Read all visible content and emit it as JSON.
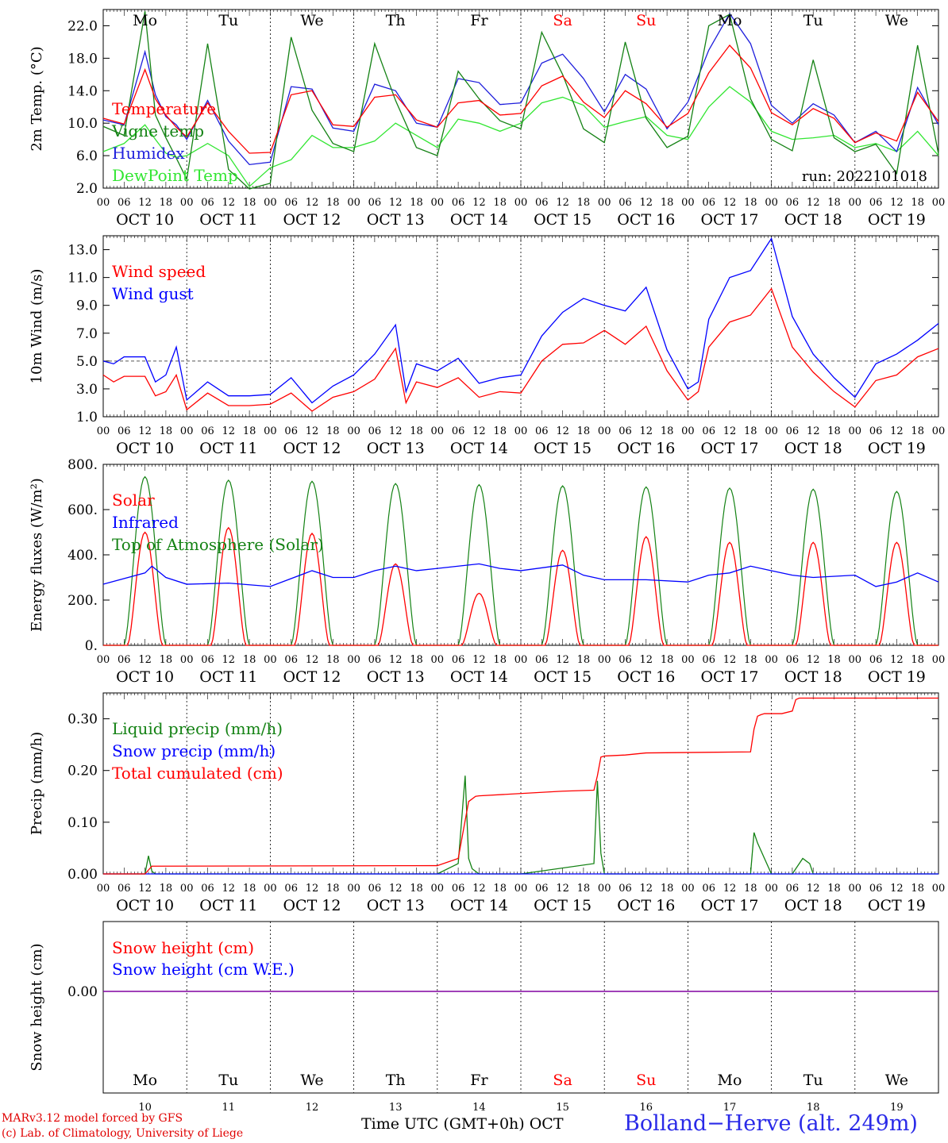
{
  "chart_data": [
    {
      "type": "line",
      "ylabel": "2m Temp. (°C)",
      "ylim": [
        2.0,
        24.0
      ],
      "yticks": [
        "2.0",
        "6.0",
        "10.0",
        "14.0",
        "18.0",
        "22.0"
      ],
      "ytick_values": [
        2,
        6,
        10,
        14,
        18,
        22
      ],
      "run_label": "run: 2022101018",
      "day_names": [
        "Mo",
        "Tu",
        "We",
        "Th",
        "Fr",
        "Sa",
        "Su",
        "Mo",
        "Tu",
        "We"
      ],
      "dates": [
        "OCT 10",
        "OCT 11",
        "OCT 12",
        "OCT 13",
        "OCT 14",
        "OCT 15",
        "OCT 16",
        "OCT 17",
        "OCT 18",
        "OCT 19"
      ],
      "hour_labels": [
        "00",
        "06",
        "12",
        "18"
      ],
      "x_unit": "hours since OCT 10 00 UTC",
      "series": [
        {
          "name": "Temperature",
          "color": "#ff0000",
          "x": [
            0,
            6,
            12,
            15,
            18,
            21,
            24,
            30,
            36,
            42,
            48,
            54,
            60,
            66,
            72,
            78,
            84,
            90,
            96,
            102,
            108,
            114,
            120,
            126,
            132,
            138,
            144,
            150,
            156,
            162,
            168,
            174,
            180,
            186,
            192,
            198,
            204,
            210,
            216,
            222,
            228,
            234,
            240
          ],
          "y": [
            10.6,
            9.9,
            16.6,
            13,
            11,
            9.5,
            8.3,
            12.5,
            9,
            6.3,
            6.4,
            13.5,
            14,
            9.8,
            9.6,
            13.2,
            13.5,
            10.4,
            9.5,
            12.5,
            12.8,
            11,
            11.2,
            14.6,
            15.8,
            12.6,
            10.7,
            14,
            12.4,
            9.5,
            11.2,
            16.2,
            19.6,
            16.8,
            11.3,
            9.8,
            11.8,
            10.6,
            7.6,
            8.8,
            7.8,
            13.8,
            10.2
          ]
        },
        {
          "name": "Vigne temp",
          "color": "#148214",
          "x": [
            0,
            6,
            12,
            15,
            18,
            21,
            24,
            30,
            36,
            42,
            48,
            54,
            60,
            66,
            72,
            78,
            84,
            90,
            96,
            102,
            108,
            114,
            120,
            126,
            132,
            138,
            144,
            150,
            156,
            162,
            168,
            174,
            180,
            186,
            192,
            198,
            204,
            210,
            216,
            222,
            228,
            234,
            240
          ],
          "y": [
            9.6,
            8.5,
            23.8,
            11,
            8.2,
            5.7,
            3.1,
            19.8,
            4.3,
            1.9,
            2.6,
            20.6,
            11.6,
            7.5,
            6.5,
            19.8,
            12.8,
            7,
            6,
            16.4,
            13,
            10.3,
            9.3,
            21.2,
            16,
            9.3,
            7.6,
            20,
            10.6,
            7,
            8.4,
            22,
            23.4,
            13,
            8,
            6.6,
            17.8,
            8.2,
            6.5,
            7.4,
            3.8,
            19.6,
            6.2
          ]
        },
        {
          "name": "Humidex",
          "color": "#1e1edc",
          "x": [
            0,
            6,
            12,
            15,
            18,
            21,
            24,
            30,
            36,
            42,
            48,
            54,
            60,
            66,
            72,
            78,
            84,
            90,
            96,
            102,
            108,
            114,
            120,
            126,
            132,
            138,
            144,
            150,
            156,
            162,
            168,
            174,
            180,
            186,
            192,
            198,
            204,
            210,
            216,
            222,
            228,
            234,
            240
          ],
          "y": [
            10.4,
            9.8,
            18.8,
            13.5,
            10.8,
            9.8,
            8,
            12.8,
            7.8,
            4.9,
            5.2,
            14.5,
            14.2,
            9.4,
            9,
            14.8,
            14,
            10,
            9.5,
            15.5,
            15,
            12.3,
            12.5,
            17.4,
            18.5,
            15.5,
            11.4,
            16,
            14.2,
            9.3,
            12.6,
            19,
            23.5,
            19.8,
            12.2,
            10,
            12.4,
            11,
            7.6,
            9,
            6.5,
            14.4,
            9.8
          ]
        },
        {
          "name": "DewPoint Temp",
          "color": "#32e632",
          "x": [
            0,
            6,
            12,
            15,
            18,
            21,
            24,
            30,
            36,
            42,
            48,
            54,
            60,
            66,
            72,
            78,
            84,
            90,
            96,
            102,
            108,
            114,
            120,
            126,
            132,
            138,
            144,
            150,
            156,
            162,
            168,
            174,
            180,
            186,
            192,
            198,
            204,
            210,
            216,
            222,
            228,
            234,
            240
          ],
          "y": [
            6.5,
            7.5,
            9.8,
            8,
            6.3,
            5.8,
            6,
            7.5,
            6,
            2.2,
            4.5,
            5.5,
            8.5,
            7,
            7,
            7.8,
            10,
            8.5,
            7,
            10.5,
            10,
            9,
            10,
            12.5,
            13.2,
            12.2,
            9.5,
            10.2,
            10.8,
            8.5,
            8,
            12,
            14.5,
            12.6,
            9,
            8,
            8.2,
            8.5,
            7,
            7.5,
            6.5,
            9,
            6
          ]
        }
      ],
      "legend": [
        "Temperature",
        "Vigne temp",
        "Humidex",
        "DewPoint Temp"
      ],
      "legend_placement": "top-left"
    },
    {
      "type": "line",
      "ylabel": "10m Wind (m/s)",
      "ylim": [
        1.0,
        14.0
      ],
      "yticks": [
        "1.0",
        "3.0",
        "5.0",
        "7.0",
        "9.0",
        "11.0",
        "13.0"
      ],
      "ytick_values": [
        1,
        3,
        5,
        7,
        9,
        11,
        13
      ],
      "reference_line": 5.0,
      "dates": [
        "OCT 10",
        "OCT 11",
        "OCT 12",
        "OCT 13",
        "OCT 14",
        "OCT 15",
        "OCT 16",
        "OCT 17",
        "OCT 18",
        "OCT 19"
      ],
      "hour_labels": [
        "00",
        "06",
        "12",
        "18"
      ],
      "series": [
        {
          "name": "Wind speed",
          "color": "#ff0000",
          "x": [
            0,
            3,
            6,
            12,
            15,
            18,
            21,
            24,
            30,
            36,
            42,
            48,
            54,
            60,
            66,
            72,
            78,
            84,
            87,
            90,
            96,
            102,
            108,
            114,
            120,
            126,
            132,
            138,
            144,
            150,
            156,
            162,
            168,
            171,
            174,
            180,
            186,
            192,
            198,
            204,
            210,
            216,
            222,
            228,
            234,
            240
          ],
          "y": [
            4,
            3.5,
            3.9,
            3.9,
            2.5,
            2.8,
            4,
            1.5,
            2.7,
            1.8,
            1.8,
            1.9,
            2.7,
            1.4,
            2.4,
            2.8,
            3.7,
            5.9,
            2,
            3.5,
            3.1,
            3.8,
            2.4,
            2.8,
            2.7,
            5,
            6.2,
            6.3,
            7.2,
            6.2,
            7.5,
            4.3,
            2.2,
            2.8,
            6,
            7.8,
            8.3,
            10.2,
            6,
            4.2,
            2.8,
            1.7,
            3.6,
            4,
            5.3,
            5.9
          ]
        },
        {
          "name": "Wind gust",
          "color": "#0000ff",
          "x": [
            0,
            3,
            6,
            12,
            15,
            18,
            21,
            24,
            30,
            36,
            42,
            48,
            54,
            60,
            66,
            72,
            78,
            84,
            87,
            90,
            96,
            102,
            108,
            114,
            120,
            126,
            132,
            138,
            144,
            150,
            156,
            162,
            168,
            171,
            174,
            180,
            186,
            192,
            198,
            204,
            210,
            216,
            222,
            228,
            234,
            240
          ],
          "y": [
            5,
            4.8,
            5.3,
            5.3,
            3.5,
            4,
            6,
            2.2,
            3.5,
            2.5,
            2.5,
            2.6,
            3.8,
            2,
            3.2,
            4,
            5.5,
            7.6,
            2.8,
            4.8,
            4.3,
            5.2,
            3.4,
            3.8,
            4,
            6.8,
            8.5,
            9.5,
            9,
            8.6,
            10.3,
            5.8,
            3,
            3.5,
            8,
            11,
            11.5,
            13.8,
            8.2,
            5.5,
            3.8,
            2.4,
            4.8,
            5.5,
            6.5,
            7.7
          ]
        }
      ],
      "legend": [
        "Wind speed",
        "Wind gust"
      ],
      "legend_placement": "top-left"
    },
    {
      "type": "line",
      "ylabel": "Energy fluxes (W/m²)",
      "ylim": [
        0,
        800
      ],
      "yticks": [
        "0.",
        "200.",
        "400.",
        "600.",
        "800."
      ],
      "ytick_values": [
        0,
        200,
        400,
        600,
        800
      ],
      "dates": [
        "OCT 10",
        "OCT 11",
        "OCT 12",
        "OCT 13",
        "OCT 14",
        "OCT 15",
        "OCT 16",
        "OCT 17",
        "OCT 18",
        "OCT 19"
      ],
      "hour_labels": [
        "00",
        "06",
        "12",
        "18"
      ],
      "toa_peaks": [
        745,
        730,
        725,
        715,
        710,
        705,
        700,
        695,
        690,
        680
      ],
      "solar_peaks": [
        500,
        520,
        495,
        360,
        230,
        420,
        480,
        455,
        455,
        455
      ],
      "series": [
        {
          "name": "Solar",
          "color": "#ff0000"
        },
        {
          "name": "Infrared",
          "color": "#0000ff",
          "x": [
            0,
            12,
            14,
            18,
            24,
            36,
            48,
            60,
            66,
            72,
            78,
            84,
            90,
            96,
            108,
            114,
            120,
            132,
            138,
            144,
            156,
            168,
            174,
            180,
            186,
            192,
            198,
            204,
            216,
            222,
            228,
            234,
            240
          ],
          "y": [
            270,
            320,
            350,
            300,
            270,
            275,
            260,
            330,
            300,
            300,
            330,
            350,
            330,
            340,
            360,
            340,
            330,
            355,
            310,
            290,
            290,
            280,
            310,
            320,
            350,
            330,
            310,
            300,
            310,
            260,
            280,
            320,
            280
          ]
        },
        {
          "name": "Top of Atmosphere (Solar)",
          "color": "#148214"
        }
      ],
      "legend": [
        "Solar",
        "Infrared",
        "Top of Atmosphere (Solar)"
      ],
      "legend_placement": "top-left"
    },
    {
      "type": "line",
      "ylabel": "Precip (mm/h)",
      "ylim": [
        0.0,
        0.35
      ],
      "yticks": [
        "0.00",
        "0.10",
        "0.20",
        "0.30"
      ],
      "ytick_values": [
        0,
        0.1,
        0.2,
        0.3
      ],
      "dates": [
        "OCT 10",
        "OCT 11",
        "OCT 12",
        "OCT 13",
        "OCT 14",
        "OCT 15",
        "OCT 16",
        "OCT 17",
        "OCT 18",
        "OCT 19"
      ],
      "hour_labels": [
        "00",
        "06",
        "12",
        "18"
      ],
      "series": [
        {
          "name": "Liquid precip (mm/h)",
          "color": "#148214",
          "x": [
            0,
            12,
            13,
            14,
            15,
            96,
            102,
            104,
            105,
            106,
            108,
            120,
            141,
            142,
            143,
            144,
            150,
            186,
            187,
            188,
            190,
            192,
            198,
            201,
            203,
            204,
            210,
            240
          ],
          "y": [
            0,
            0,
            0.035,
            0.005,
            0,
            0,
            0.02,
            0.19,
            0.03,
            0.01,
            0,
            0,
            0.02,
            0.18,
            0.04,
            0,
            0,
            0,
            0.08,
            0.06,
            0.03,
            0,
            0,
            0.03,
            0.02,
            0,
            0,
            0
          ]
        },
        {
          "name": "Snow precip (mm/h)",
          "color": "#0000ff",
          "x": [
            0,
            240
          ],
          "y": [
            0,
            0
          ]
        },
        {
          "name": "Total cumulated (cm)",
          "color": "#ff0000",
          "x": [
            0,
            12,
            14,
            96,
            102,
            105,
            107,
            108,
            132,
            141,
            142,
            143,
            144,
            150,
            156,
            186,
            187,
            188,
            189,
            190,
            195,
            198,
            199,
            200,
            240
          ],
          "y": [
            0,
            0,
            0.015,
            0.016,
            0.03,
            0.14,
            0.15,
            0.151,
            0.16,
            0.162,
            0.19,
            0.226,
            0.228,
            0.23,
            0.234,
            0.236,
            0.28,
            0.305,
            0.308,
            0.31,
            0.31,
            0.315,
            0.337,
            0.34,
            0.34
          ]
        }
      ],
      "legend": [
        "Liquid precip (mm/h)",
        "Snow precip (mm/h)",
        "Total cumulated (cm)"
      ],
      "legend_placement": "top-left"
    },
    {
      "type": "line",
      "ylabel": "Snow height (cm)",
      "yticks": [
        "0.00"
      ],
      "ytick_values": [
        0
      ],
      "day_names": [
        "Mo",
        "Tu",
        "We",
        "Th",
        "Fr",
        "Sa",
        "Su",
        "Mo",
        "Tu",
        "We"
      ],
      "day_numbers": [
        "10",
        "11",
        "12",
        "13",
        "14",
        "15",
        "16",
        "17",
        "18",
        "19"
      ],
      "series": [
        {
          "name": "Snow height (cm)",
          "color": "#ff0000",
          "x": [
            0,
            240
          ],
          "y": [
            0,
            0
          ]
        },
        {
          "name": "Snow height (cm W.E.)",
          "color": "#0000ff",
          "x": [
            0,
            240
          ],
          "y": [
            0,
            0
          ]
        }
      ],
      "legend": [
        "Snow height (cm)",
        "Snow height (cm W.E.)"
      ],
      "legend_placement": "top-left"
    }
  ],
  "footer": {
    "model": "MARv3.12 model forced by GFS",
    "credit": "(c) Lab. of Climatology, University of Liege",
    "xlabel": "Time UTC (GMT+0h) OCT",
    "station": "Bolland−Herve (alt. 249m)"
  },
  "colors": {
    "weekend_day": "#ff0000",
    "weekday": "#000000",
    "purple_zero": "#8000a0"
  }
}
